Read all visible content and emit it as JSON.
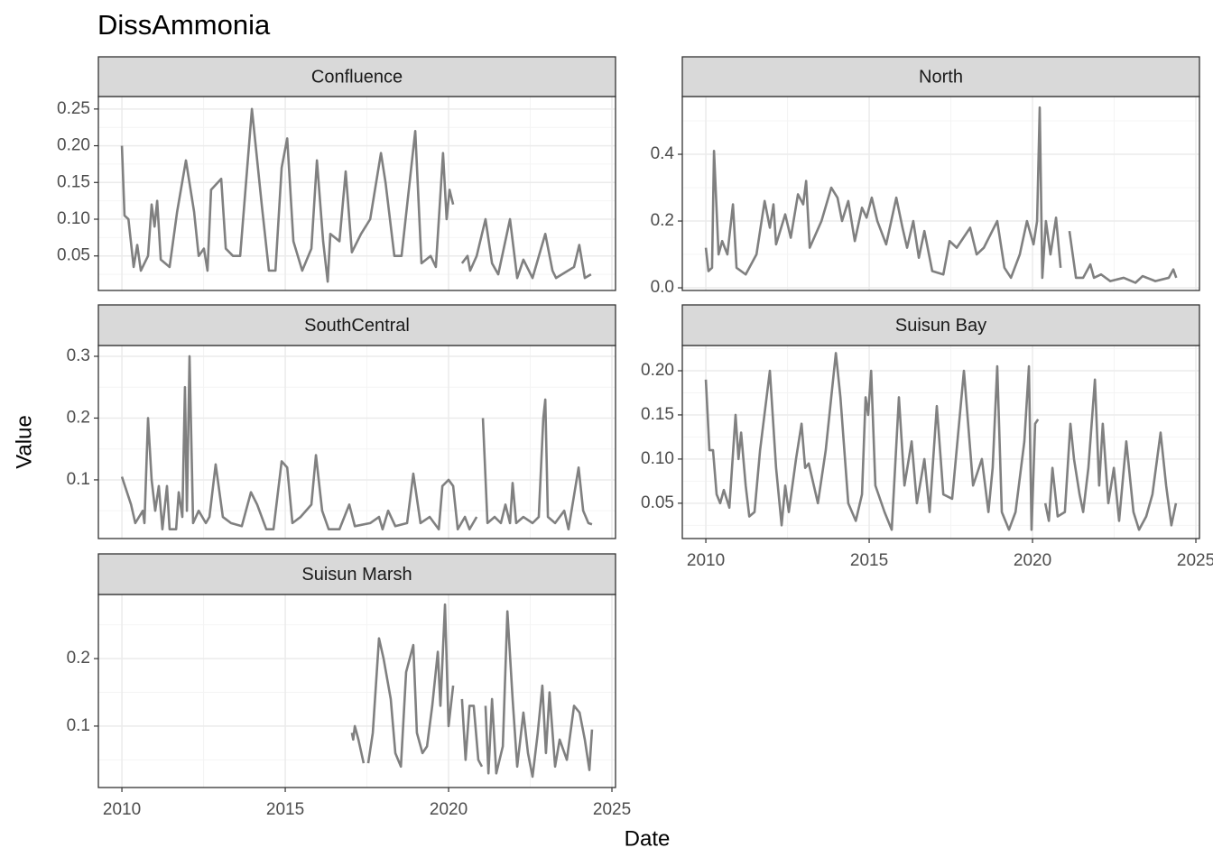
{
  "title": "DissAmmonia",
  "x_label": "Date",
  "y_label": "Value",
  "chart_data": [
    {
      "type": "line",
      "title": "Confluence",
      "color": "#808080",
      "grid": true,
      "xlim": [
        2009.28,
        2025.11
      ],
      "xticks": [
        2010,
        2015,
        2020,
        2025
      ],
      "ylim": [
        0.003,
        0.267
      ],
      "yticks": [
        0.05,
        {
          "value": 0.1,
          "label": "0.10"
        },
        0.15,
        {
          "value": 0.2,
          "label": "0.20"
        },
        0.25
      ],
      "x": [
        2010.0,
        2010.08,
        2010.2,
        2010.36,
        2010.47,
        2010.58,
        2010.8,
        2010.91,
        2011.0,
        2011.08,
        2011.19,
        2011.46,
        2011.69,
        2011.96,
        2012.21,
        2012.35,
        2012.51,
        2012.62,
        2012.73,
        2013.04,
        2013.18,
        2013.4,
        2013.62,
        2013.98,
        2014.28,
        2014.5,
        2014.7,
        2014.89,
        2015.06,
        2015.25,
        2015.52,
        2015.8,
        2015.97,
        2016.16,
        2016.3,
        2016.38,
        2016.66,
        2016.85,
        2017.04,
        2017.32,
        2017.6,
        2017.93,
        2018.07,
        2018.34,
        2018.56,
        2018.98,
        2019.17,
        2019.45,
        2019.61,
        2019.83,
        2019.94,
        2020.03,
        2020.14,
        2020.28,
        2020.41,
        2020.58,
        2020.66,
        2020.86,
        2021.13,
        2021.33,
        2021.52,
        2021.88,
        2022.1,
        2022.29,
        2022.57,
        2022.96,
        2023.18,
        2023.29,
        2023.84,
        2024.0,
        2024.17,
        2024.36
      ],
      "values": [
        0.2,
        0.105,
        0.1,
        0.035,
        0.065,
        0.03,
        0.05,
        0.12,
        0.09,
        0.125,
        0.045,
        0.035,
        0.11,
        0.18,
        0.11,
        0.05,
        0.06,
        0.03,
        0.14,
        0.155,
        0.06,
        0.05,
        0.05,
        0.25,
        0.12,
        0.03,
        0.03,
        0.17,
        0.21,
        0.07,
        0.03,
        0.06,
        0.18,
        0.07,
        0.015,
        0.08,
        0.07,
        0.165,
        0.055,
        0.08,
        0.1,
        0.19,
        0.15,
        0.05,
        0.05,
        0.22,
        0.04,
        0.05,
        0.035,
        0.19,
        0.1,
        0.14,
        0.12,
        null,
        0.04,
        0.05,
        0.03,
        0.05,
        0.1,
        0.04,
        0.025,
        0.1,
        0.02,
        0.045,
        0.02,
        0.08,
        0.03,
        0.02,
        0.035,
        0.065,
        0.02,
        0.025
      ]
    },
    {
      "type": "line",
      "title": "North",
      "color": "#808080",
      "grid": true,
      "xlim": [
        2009.28,
        2025.11
      ],
      "xticks": [
        2010,
        2015,
        2020,
        2025
      ],
      "ylim": [
        -0.008,
        0.573
      ],
      "yticks": [
        {
          "value": 0,
          "label": "0.0"
        },
        0.2,
        0.4
      ],
      "x": [
        2010.0,
        2010.08,
        2010.19,
        2010.25,
        2010.39,
        2010.5,
        2010.66,
        2010.83,
        2010.94,
        2011.22,
        2011.55,
        2011.8,
        2011.96,
        2012.07,
        2012.15,
        2012.43,
        2012.6,
        2012.82,
        2012.98,
        2013.07,
        2013.18,
        2013.54,
        2013.84,
        2014.03,
        2014.17,
        2014.36,
        2014.56,
        2014.78,
        2014.92,
        2015.08,
        2015.25,
        2015.52,
        2015.83,
        2016.02,
        2016.16,
        2016.35,
        2016.52,
        2016.69,
        2016.93,
        2017.27,
        2017.46,
        2017.68,
        2018.09,
        2018.29,
        2018.51,
        2018.92,
        2019.14,
        2019.34,
        2019.61,
        2019.83,
        2020.03,
        2020.14,
        2020.22,
        2020.3,
        2020.41,
        2020.55,
        2020.72,
        2020.86,
        2021.0,
        2021.13,
        2021.33,
        2021.55,
        2021.77,
        2021.88,
        2022.1,
        2022.38,
        2022.79,
        2023.15,
        2023.37,
        2023.76,
        2024.17,
        2024.31,
        2024.4
      ],
      "values": [
        0.12,
        0.05,
        0.06,
        0.41,
        0.1,
        0.14,
        0.1,
        0.25,
        0.06,
        0.04,
        0.1,
        0.26,
        0.18,
        0.25,
        0.13,
        0.22,
        0.15,
        0.28,
        0.25,
        0.32,
        0.12,
        0.2,
        0.3,
        0.27,
        0.2,
        0.26,
        0.14,
        0.24,
        0.21,
        0.27,
        0.2,
        0.13,
        0.27,
        0.18,
        0.12,
        0.2,
        0.09,
        0.17,
        0.05,
        0.04,
        0.14,
        0.12,
        0.18,
        0.1,
        0.12,
        0.2,
        0.06,
        0.03,
        0.1,
        0.2,
        0.13,
        0.2,
        0.54,
        0.03,
        0.2,
        0.1,
        0.21,
        0.06,
        null,
        0.17,
        0.03,
        0.03,
        0.07,
        0.03,
        0.04,
        0.02,
        0.03,
        0.015,
        0.035,
        0.02,
        0.03,
        0.055,
        0.03
      ]
    },
    {
      "type": "line",
      "title": "SouthCentral",
      "color": "#808080",
      "grid": true,
      "xlim": [
        2009.28,
        2025.11
      ],
      "xticks": [
        2010,
        2015,
        2020,
        2025
      ],
      "ylim": [
        0.005,
        0.3175
      ],
      "yticks": [
        0.1,
        0.2,
        0.3
      ],
      "x": [
        2010.0,
        2010.28,
        2010.41,
        2010.64,
        2010.69,
        2010.8,
        2010.91,
        2011.02,
        2011.13,
        2011.24,
        2011.38,
        2011.46,
        2011.66,
        2011.74,
        2011.85,
        2011.93,
        2011.99,
        2012.07,
        2012.18,
        2012.35,
        2012.57,
        2012.68,
        2012.87,
        2013.09,
        2013.34,
        2013.67,
        2013.95,
        2014.14,
        2014.42,
        2014.64,
        2014.89,
        2015.06,
        2015.22,
        2015.47,
        2015.8,
        2015.94,
        2016.13,
        2016.33,
        2016.66,
        2016.96,
        2017.13,
        2017.6,
        2017.87,
        2017.98,
        2018.15,
        2018.37,
        2018.73,
        2018.92,
        2019.14,
        2019.42,
        2019.7,
        2019.81,
        2020.0,
        2020.14,
        2020.28,
        2020.5,
        2020.64,
        2020.86,
        2020.95,
        2021.05,
        2021.19,
        2021.41,
        2021.6,
        2021.74,
        2021.88,
        2021.96,
        2022.07,
        2022.29,
        2022.57,
        2022.76,
        2022.9,
        2022.96,
        2023.04,
        2023.26,
        2023.54,
        2023.67,
        2023.98,
        2024.12,
        2024.28,
        2024.39
      ],
      "values": [
        0.105,
        0.06,
        0.03,
        0.05,
        0.03,
        0.2,
        0.1,
        0.05,
        0.09,
        0.02,
        0.09,
        0.02,
        0.02,
        0.08,
        0.04,
        0.25,
        0.05,
        0.3,
        0.03,
        0.05,
        0.03,
        0.04,
        0.125,
        0.04,
        0.03,
        0.025,
        0.08,
        0.06,
        0.02,
        0.02,
        0.13,
        0.12,
        0.03,
        0.04,
        0.06,
        0.14,
        0.05,
        0.02,
        0.02,
        0.06,
        0.025,
        0.03,
        0.04,
        0.02,
        0.05,
        0.025,
        0.03,
        0.11,
        0.03,
        0.04,
        0.02,
        0.09,
        0.1,
        0.09,
        0.02,
        0.04,
        0.02,
        0.04,
        null,
        0.2,
        0.03,
        0.04,
        0.03,
        0.06,
        0.03,
        0.095,
        0.03,
        0.04,
        0.03,
        0.04,
        0.2,
        0.23,
        0.04,
        0.03,
        0.05,
        0.02,
        0.12,
        0.05,
        0.03,
        0.028
      ]
    },
    {
      "type": "line",
      "title": "Suisun Bay",
      "color": "#808080",
      "grid": true,
      "xlim": [
        2009.28,
        2025.11
      ],
      "xticks": [
        2010,
        2015,
        2020,
        2025
      ],
      "ylim": [
        0.01,
        0.2286
      ],
      "yticks": [
        0.05,
        {
          "value": 0.1,
          "label": "0.10"
        },
        0.15,
        {
          "value": 0.2,
          "label": "0.20"
        }
      ],
      "x": [
        2010.0,
        2010.11,
        2010.22,
        2010.33,
        2010.44,
        2010.55,
        2010.72,
        2010.91,
        2011.0,
        2011.08,
        2011.22,
        2011.33,
        2011.49,
        2011.66,
        2011.96,
        2012.15,
        2012.32,
        2012.43,
        2012.54,
        2012.76,
        2012.93,
        2013.04,
        2013.15,
        2013.43,
        2013.67,
        2013.98,
        2014.12,
        2014.36,
        2014.59,
        2014.78,
        2014.89,
        2014.97,
        2015.06,
        2015.19,
        2015.47,
        2015.69,
        2015.91,
        2016.08,
        2016.3,
        2016.46,
        2016.69,
        2016.85,
        2017.07,
        2017.27,
        2017.54,
        2017.9,
        2018.18,
        2018.45,
        2018.65,
        2018.78,
        2018.92,
        2019.06,
        2019.28,
        2019.48,
        2019.75,
        2019.89,
        2019.97,
        2020.08,
        2020.17,
        2020.28,
        2020.39,
        2020.5,
        2020.61,
        2020.77,
        2020.99,
        2021.16,
        2021.27,
        2021.44,
        2021.55,
        2021.71,
        2021.91,
        2022.04,
        2022.15,
        2022.32,
        2022.49,
        2022.65,
        2022.87,
        2023.09,
        2023.26,
        2023.48,
        2023.67,
        2023.92,
        2024.09,
        2024.25,
        2024.39
      ],
      "values": [
        0.19,
        0.11,
        0.11,
        0.06,
        0.05,
        0.065,
        0.045,
        0.15,
        0.1,
        0.13,
        0.07,
        0.035,
        0.04,
        0.11,
        0.2,
        0.09,
        0.025,
        0.07,
        0.04,
        0.1,
        0.14,
        0.09,
        0.095,
        0.05,
        0.11,
        0.22,
        0.17,
        0.05,
        0.03,
        0.06,
        0.17,
        0.15,
        0.2,
        0.07,
        0.04,
        0.02,
        0.17,
        0.07,
        0.12,
        0.05,
        0.1,
        0.04,
        0.16,
        0.06,
        0.055,
        0.2,
        0.07,
        0.1,
        0.04,
        0.09,
        0.205,
        0.04,
        0.02,
        0.04,
        0.12,
        0.205,
        0.02,
        0.14,
        0.145,
        null,
        0.05,
        0.03,
        0.09,
        0.035,
        0.04,
        0.14,
        0.1,
        0.06,
        0.04,
        0.09,
        0.19,
        0.07,
        0.14,
        0.05,
        0.09,
        0.03,
        0.12,
        0.04,
        0.02,
        0.035,
        0.06,
        0.13,
        0.07,
        0.025,
        0.05
      ]
    },
    {
      "type": "line",
      "title": "Suisun Marsh",
      "color": "#808080",
      "grid": true,
      "xlim": [
        2009.28,
        2025.11
      ],
      "xticks": [
        2010,
        2015,
        2020,
        2025
      ],
      "ylim": [
        0.009,
        0.295
      ],
      "yticks": [
        0.1,
        0.2
      ],
      "x": [
        2017.04,
        2017.08,
        2017.13,
        2017.24,
        2017.4,
        2017.47,
        2017.54,
        2017.68,
        2017.87,
        2018.01,
        2018.23,
        2018.37,
        2018.54,
        2018.7,
        2018.92,
        2019.03,
        2019.2,
        2019.34,
        2019.5,
        2019.67,
        2019.75,
        2019.89,
        2020.0,
        2020.14,
        2020.28,
        2020.41,
        2020.52,
        2020.64,
        2020.77,
        2020.91,
        2021.02,
        2021.08,
        2021.13,
        2021.22,
        2021.33,
        2021.46,
        2021.66,
        2021.8,
        2021.96,
        2022.1,
        2022.29,
        2022.43,
        2022.57,
        2022.73,
        2022.87,
        2022.98,
        2023.09,
        2023.26,
        2023.4,
        2023.62,
        2023.84,
        2024.01,
        2024.17,
        2024.31,
        2024.39
      ],
      "values": [
        0.09,
        0.08,
        0.1,
        0.08,
        0.045,
        null,
        0.045,
        0.09,
        0.23,
        0.2,
        0.14,
        0.06,
        0.04,
        0.18,
        0.22,
        0.09,
        0.06,
        0.07,
        0.13,
        0.21,
        0.13,
        0.28,
        0.1,
        0.16,
        null,
        0.14,
        0.05,
        0.13,
        0.13,
        0.05,
        0.04,
        null,
        0.13,
        0.03,
        0.14,
        0.03,
        0.07,
        0.27,
        0.14,
        0.04,
        0.12,
        0.06,
        0.025,
        0.09,
        0.16,
        0.06,
        0.15,
        0.04,
        0.08,
        0.05,
        0.13,
        0.12,
        0.08,
        0.035,
        0.095
      ]
    }
  ]
}
